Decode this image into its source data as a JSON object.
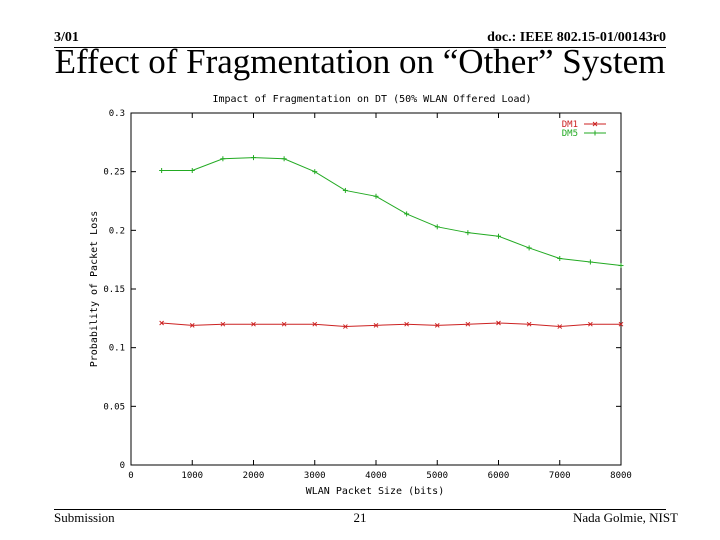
{
  "header": {
    "date": "3/01",
    "doc_id": "doc.: IEEE 802.15-01/00143r0"
  },
  "slide_title": "Effect of Fragmentation on “Other” System",
  "footer": {
    "left": "Submission",
    "page_number": "21",
    "author": "Nada Golmie, NIST"
  },
  "colors": {
    "series_1": "#cc2222",
    "series_2": "#22aa22",
    "axis": "#000000"
  },
  "chart_data": {
    "type": "line",
    "title": "Impact of Fragmentation on DT (50% WLAN Offered Load)",
    "xlabel": "WLAN Packet Size (bits)",
    "ylabel": "Probability of Packet Loss",
    "xlim": [
      0,
      8000
    ],
    "ylim": [
      0,
      0.3
    ],
    "x_ticks": [
      0,
      1000,
      2000,
      3000,
      4000,
      5000,
      6000,
      7000,
      8000
    ],
    "y_ticks": [
      0,
      0.05,
      0.1,
      0.15,
      0.2,
      0.25,
      0.3
    ],
    "x_tick_labels": [
      "0",
      "1000",
      "2000",
      "3000",
      "4000",
      "5000",
      "6000",
      "7000",
      "8000"
    ],
    "y_tick_labels": [
      "0",
      "0.05",
      "0.1",
      "0.15",
      "0.2",
      "0.25",
      "0.3"
    ],
    "grid": false,
    "legend_position": "top-right",
    "series": [
      {
        "name": "DM1",
        "x": [
          500,
          1000,
          1500,
          2000,
          2500,
          3000,
          3500,
          4000,
          4500,
          5000,
          5500,
          6000,
          6500,
          7000,
          7500,
          8000
        ],
        "values": [
          0.121,
          0.119,
          0.12,
          0.12,
          0.12,
          0.12,
          0.118,
          0.119,
          0.12,
          0.119,
          0.12,
          0.121,
          0.12,
          0.118,
          0.12,
          0.12
        ]
      },
      {
        "name": "DM5",
        "x": [
          500,
          1000,
          1500,
          2000,
          2500,
          3000,
          3500,
          4000,
          4500,
          5000,
          5500,
          6000,
          6500,
          7000,
          7500,
          8000
        ],
        "values": [
          0.251,
          0.251,
          0.261,
          0.262,
          0.261,
          0.25,
          0.234,
          0.229,
          0.214,
          0.203,
          0.198,
          0.195,
          0.185,
          0.176,
          0.173,
          0.17
        ]
      }
    ]
  }
}
